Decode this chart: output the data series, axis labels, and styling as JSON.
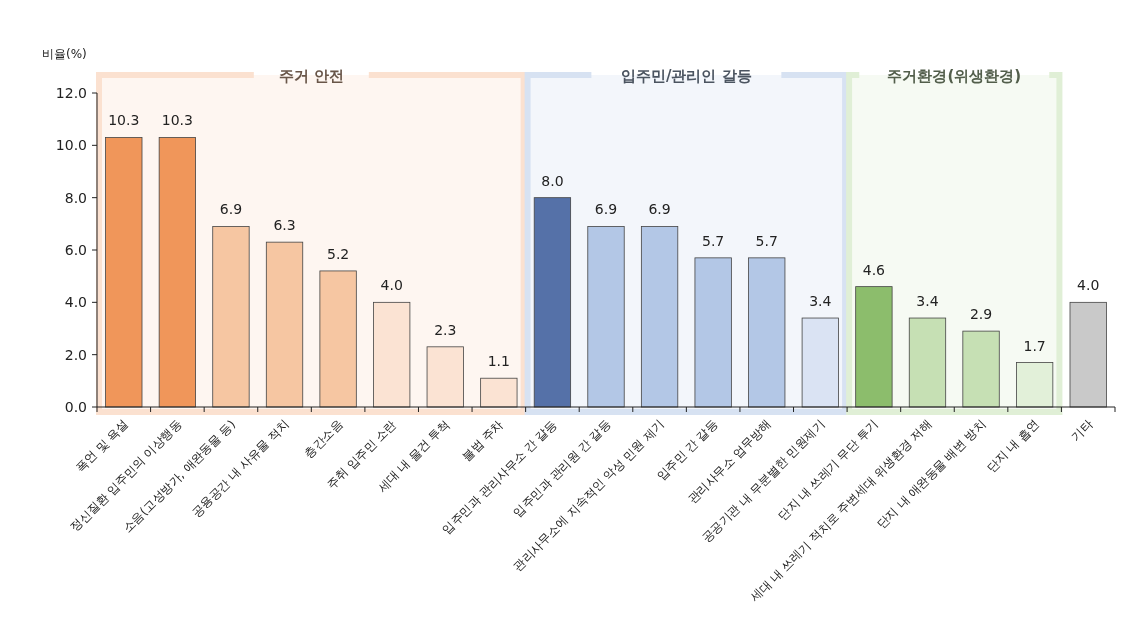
{
  "chart_data": {
    "type": "bar",
    "ylabel": "비율(%)",
    "categories": [
      "폭언 및 욕설",
      "정신질환 입주민의 이상행동",
      "소음(고성방가, 애완동물 등)",
      "공용공간 내 사유물 적치",
      "층간소음",
      "주취 입주민 소란",
      "세대 내 물건 투척",
      "불법 주차",
      "입주민과 관리사무소 간 갈등",
      "입주민과 관리원 간 갈등",
      "관리사무소에 지속적인 악성 민원 제기",
      "입주민 간 갈등",
      "관리사무소 업무방해",
      "공공기관 내 무분별한 민원제기",
      "단지 내 쓰레기 무단 투기",
      "세대 내 쓰레기 적치로 주변세대 위생환경 저해",
      "단지 내 애완동물 배변 방치",
      "단지 내 흡연",
      "기타"
    ],
    "values": [
      10.3,
      10.3,
      6.9,
      6.3,
      5.2,
      4.0,
      2.3,
      1.1,
      8.0,
      6.9,
      6.9,
      5.7,
      5.7,
      3.4,
      4.6,
      3.4,
      2.9,
      1.7,
      4.0
    ],
    "value_labels": [
      "10.3",
      "10.3",
      "6.9",
      "6.3",
      "5.2",
      "4.0",
      "2.3",
      "1.1",
      "8.0",
      "6.9",
      "6.9",
      "5.7",
      "5.7",
      "3.4",
      "4.6",
      "3.4",
      "2.9",
      "1.7",
      "4.0"
    ],
    "colors": [
      "#f0965a",
      "#f0965a",
      "#f6c6a2",
      "#f6c6a2",
      "#f6c6a2",
      "#fbe3d3",
      "#fbe3d3",
      "#fbe3d3",
      "#5571a8",
      "#b3c7e6",
      "#b3c7e6",
      "#b3c7e6",
      "#b3c7e6",
      "#dae3f3",
      "#8cbd6c",
      "#c6e0b4",
      "#c6e0b4",
      "#e2f0d9",
      "#c9c9c9"
    ],
    "ylim": [
      0,
      12
    ],
    "yticks": [
      {
        "value": 0,
        "label": "0.0"
      },
      {
        "value": 2,
        "label": "2.0"
      },
      {
        "value": 4,
        "label": "4.0"
      },
      {
        "value": 6,
        "label": "6.0"
      },
      {
        "value": 8,
        "label": "8.0"
      },
      {
        "value": 10,
        "label": "10.0"
      },
      {
        "value": 12,
        "label": "12.0"
      }
    ],
    "bands": [
      {
        "axis": "x",
        "from": "폭언 및 욕설",
        "to": "불법 주차",
        "label": "주거 안전",
        "color": "#fbe1d0"
      },
      {
        "axis": "x",
        "from": "입주민과 관리사무소 간 갈등",
        "to": "공공기관 내 무분별한 민원제기",
        "label": "입주민/관리인 갈등",
        "color": "#d7e2f2"
      },
      {
        "axis": "x",
        "from": "단지 내 쓰레기 무단 투기",
        "to": "단지 내 흡연",
        "label": "주거환경(위생환경)",
        "color": "#e0efd6"
      }
    ],
    "grid": false
  }
}
